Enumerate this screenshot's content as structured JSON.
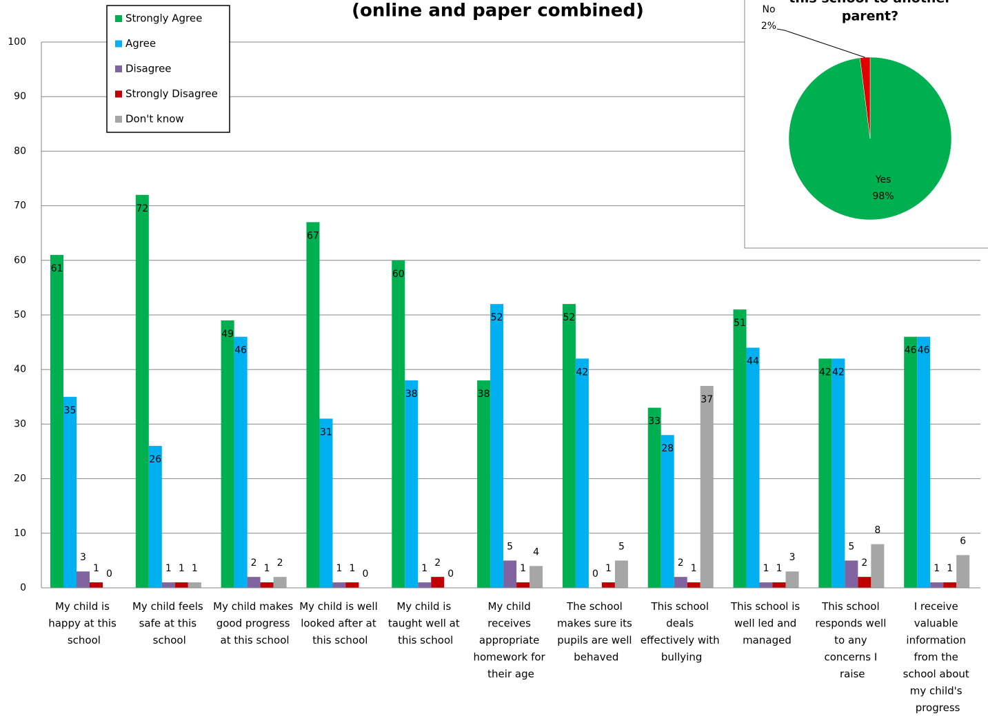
{
  "chart_data": [
    {
      "type": "bar",
      "title": "(online and paper combined)",
      "categories": [
        "My child is happy at this school",
        "My child feels safe at this school",
        "My child makes good progress at this school",
        "My child is well looked after at this school",
        "My child is taught well at this school",
        "My child receives appropriate homework for their age",
        "The school makes sure its pupils are well behaved",
        "This school deals effectively with bullying",
        "This school is well led and managed",
        "This school responds well to any concerns I raise",
        "I receive valuable information from the school about my child's progress"
      ],
      "series": [
        {
          "name": "Strongly Agree",
          "color": "#00b050",
          "values": [
            61,
            72,
            49,
            67,
            60,
            38,
            52,
            33,
            51,
            42,
            46
          ]
        },
        {
          "name": "Agree",
          "color": "#00b0f0",
          "values": [
            35,
            26,
            46,
            31,
            38,
            52,
            42,
            28,
            44,
            42,
            46
          ]
        },
        {
          "name": "Disagree",
          "color": "#8064a2",
          "values": [
            3,
            1,
            2,
            1,
            1,
            5,
            0,
            2,
            1,
            5,
            1
          ]
        },
        {
          "name": "Strongly Disagree",
          "color": "#c00000",
          "values": [
            1,
            1,
            1,
            1,
            2,
            1,
            1,
            1,
            1,
            2,
            1
          ]
        },
        {
          "name": "Don't know",
          "color": "#a6a6a6",
          "values": [
            0,
            1,
            2,
            0,
            0,
            4,
            5,
            37,
            3,
            8,
            6
          ]
        }
      ],
      "ylim": [
        0,
        100
      ],
      "yticks": [
        0,
        10,
        20,
        30,
        40,
        50,
        60,
        70,
        80,
        90,
        100
      ],
      "grid": true,
      "legend": "top-left"
    },
    {
      "type": "pie",
      "title": [
        "this school to another",
        "parent?"
      ],
      "categories": [
        "Yes",
        "No"
      ],
      "values": [
        98,
        2
      ],
      "value_labels": [
        "98%",
        "2%"
      ],
      "colors": [
        "#00b050",
        "#e00000"
      ]
    }
  ]
}
